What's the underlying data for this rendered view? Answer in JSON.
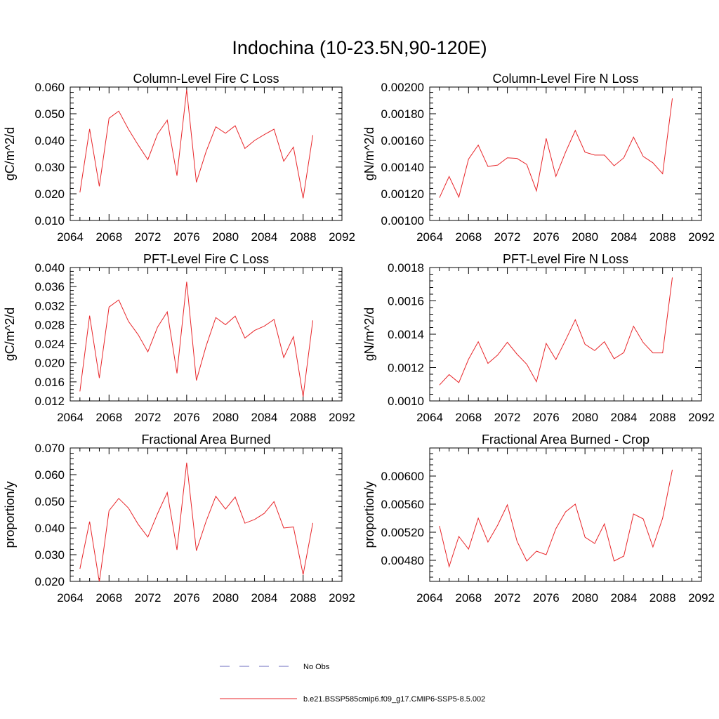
{
  "figure": {
    "title": "Indochina (10-23.5N,90-120E)",
    "legend": [
      {
        "label": "No Obs",
        "color": "#6b6bbf",
        "style": "dashed"
      },
      {
        "label": "b.e21.BSSP585cmip6.f09_g17.CMIP6-SSP5-8.5.002",
        "color": "#e8262a",
        "style": "solid"
      }
    ]
  },
  "chart_data": [
    {
      "type": "line",
      "title": "Column-Level Fire C Loss",
      "ylabel": "gC/m^2/d",
      "xlim": [
        2064,
        2092
      ],
      "ylim": [
        0.01,
        0.06
      ],
      "xticks": [
        "2064",
        "2068",
        "2072",
        "2076",
        "2080",
        "2084",
        "2088",
        "2092"
      ],
      "yticks": [
        "0.010",
        "0.020",
        "0.030",
        "0.040",
        "0.050",
        "0.060"
      ],
      "series": [
        {
          "color": "#e8262a",
          "x": [
            2065,
            2066,
            2067,
            2068,
            2069,
            2070,
            2071,
            2072,
            2073,
            2074,
            2075,
            2076,
            2077,
            2078,
            2079,
            2080,
            2081,
            2082,
            2083,
            2084,
            2085,
            2086,
            2087,
            2088,
            2089
          ],
          "y": [
            0.0205,
            0.0443,
            0.0228,
            0.0483,
            0.051,
            0.0442,
            0.0383,
            0.0328,
            0.0424,
            0.0476,
            0.0268,
            0.059,
            0.0243,
            0.0358,
            0.0451,
            0.0427,
            0.0455,
            0.037,
            0.04,
            0.0422,
            0.0442,
            0.0322,
            0.0375,
            0.0183,
            0.042
          ]
        }
      ]
    },
    {
      "type": "line",
      "title": "Column-Level Fire N Loss",
      "ylabel": "gN/m^2/d",
      "xlim": [
        2064,
        2092
      ],
      "ylim": [
        0.001,
        0.002
      ],
      "xticks": [
        "2064",
        "2068",
        "2072",
        "2076",
        "2080",
        "2084",
        "2088",
        "2092"
      ],
      "yticks": [
        "0.00100",
        "0.00120",
        "0.00140",
        "0.00160",
        "0.00180",
        "0.00200"
      ],
      "series": [
        {
          "color": "#e8262a",
          "x": [
            2065,
            2066,
            2067,
            2068,
            2069,
            2070,
            2071,
            2072,
            2073,
            2074,
            2075,
            2076,
            2077,
            2078,
            2079,
            2080,
            2081,
            2082,
            2083,
            2084,
            2085,
            2086,
            2087,
            2088,
            2089
          ],
          "y": [
            0.00117,
            0.00133,
            0.001175,
            0.00146,
            0.001565,
            0.001405,
            0.001415,
            0.00147,
            0.001465,
            0.00142,
            0.001222,
            0.001615,
            0.00133,
            0.001512,
            0.001675,
            0.001512,
            0.00149,
            0.00149,
            0.00141,
            0.00147,
            0.001625,
            0.00148,
            0.001432,
            0.00135,
            0.001915
          ]
        }
      ]
    },
    {
      "type": "line",
      "title": "PFT-Level Fire C Loss",
      "ylabel": "gC/m^2/d",
      "xlim": [
        2064,
        2092
      ],
      "ylim": [
        0.012,
        0.04
      ],
      "xticks": [
        "2064",
        "2068",
        "2072",
        "2076",
        "2080",
        "2084",
        "2088",
        "2092"
      ],
      "yticks": [
        "0.012",
        "0.016",
        "0.020",
        "0.024",
        "0.028",
        "0.032",
        "0.036",
        "0.040"
      ],
      "series": [
        {
          "color": "#e8262a",
          "x": [
            2065,
            2066,
            2067,
            2068,
            2069,
            2070,
            2071,
            2072,
            2073,
            2074,
            2075,
            2076,
            2077,
            2078,
            2079,
            2080,
            2081,
            2082,
            2083,
            2084,
            2085,
            2086,
            2087,
            2088,
            2089
          ],
          "y": [
            0.014,
            0.0299,
            0.0168,
            0.0317,
            0.0332,
            0.0287,
            0.0259,
            0.0223,
            0.0275,
            0.0307,
            0.0178,
            0.037,
            0.0163,
            0.0235,
            0.0295,
            0.028,
            0.0298,
            0.0252,
            0.0268,
            0.0277,
            0.0291,
            0.0211,
            0.0255,
            0.0129,
            0.0289
          ]
        }
      ]
    },
    {
      "type": "line",
      "title": "PFT-Level Fire N Loss",
      "ylabel": "gN/m^2/d",
      "xlim": [
        2064,
        2092
      ],
      "ylim": [
        0.001,
        0.0018
      ],
      "xticks": [
        "2064",
        "2068",
        "2072",
        "2076",
        "2080",
        "2084",
        "2088",
        "2092"
      ],
      "yticks": [
        "0.0010",
        "0.0012",
        "0.0014",
        "0.0016",
        "0.0018"
      ],
      "series": [
        {
          "color": "#e8262a",
          "x": [
            2065,
            2066,
            2067,
            2068,
            2069,
            2070,
            2071,
            2072,
            2073,
            2074,
            2075,
            2076,
            2077,
            2078,
            2079,
            2080,
            2081,
            2082,
            2083,
            2084,
            2085,
            2086,
            2087,
            2088,
            2089
          ],
          "y": [
            0.001095,
            0.001158,
            0.00111,
            0.00125,
            0.001355,
            0.001225,
            0.001275,
            0.001352,
            0.00128,
            0.00122,
            0.001115,
            0.001345,
            0.001248,
            0.001365,
            0.001487,
            0.00134,
            0.001302,
            0.001355,
            0.001253,
            0.00129,
            0.001448,
            0.00135,
            0.001288,
            0.001288,
            0.00174
          ]
        }
      ]
    },
    {
      "type": "line",
      "title": "Fractional Area Burned",
      "ylabel": "proportion/y",
      "xlim": [
        2064,
        2092
      ],
      "ylim": [
        0.02,
        0.07
      ],
      "xticks": [
        "2064",
        "2068",
        "2072",
        "2076",
        "2080",
        "2084",
        "2088",
        "2092"
      ],
      "yticks": [
        "0.020",
        "0.030",
        "0.040",
        "0.050",
        "0.060",
        "0.070"
      ],
      "series": [
        {
          "color": "#e8262a",
          "x": [
            2065,
            2066,
            2067,
            2068,
            2069,
            2070,
            2071,
            2072,
            2073,
            2074,
            2075,
            2076,
            2077,
            2078,
            2079,
            2080,
            2081,
            2082,
            2083,
            2084,
            2085,
            2086,
            2087,
            2088,
            2089
          ],
          "y": [
            0.0247,
            0.0424,
            0.0198,
            0.0465,
            0.0511,
            0.0475,
            0.0414,
            0.0366,
            0.0454,
            0.0533,
            0.0318,
            0.0645,
            0.0315,
            0.0425,
            0.0519,
            0.0471,
            0.0516,
            0.0418,
            0.0432,
            0.0455,
            0.0499,
            0.04,
            0.0404,
            0.0225,
            0.0419
          ]
        }
      ]
    },
    {
      "type": "line",
      "title": "Fractional Area Burned - Crop",
      "ylabel": "proportion/y",
      "xlim": [
        2064,
        2092
      ],
      "ylim": [
        0.0045,
        0.0064
      ],
      "xticks": [
        "2064",
        "2068",
        "2072",
        "2076",
        "2080",
        "2084",
        "2088",
        "2092"
      ],
      "yticks": [
        "0.00480",
        "0.00520",
        "0.00560",
        "0.00600"
      ],
      "series": [
        {
          "color": "#e8262a",
          "x": [
            2065,
            2066,
            2067,
            2068,
            2069,
            2070,
            2071,
            2072,
            2073,
            2074,
            2075,
            2076,
            2077,
            2078,
            2079,
            2080,
            2081,
            2082,
            2083,
            2084,
            2085,
            2086,
            2087,
            2088,
            2089
          ],
          "y": [
            0.00529,
            0.00471,
            0.00514,
            0.00496,
            0.0054,
            0.00506,
            0.0053,
            0.00559,
            0.00507,
            0.00479,
            0.00493,
            0.00488,
            0.00525,
            0.00549,
            0.0056,
            0.00513,
            0.00504,
            0.00532,
            0.00479,
            0.00486,
            0.00546,
            0.00539,
            0.00499,
            0.0054,
            0.00609
          ]
        }
      ]
    }
  ]
}
